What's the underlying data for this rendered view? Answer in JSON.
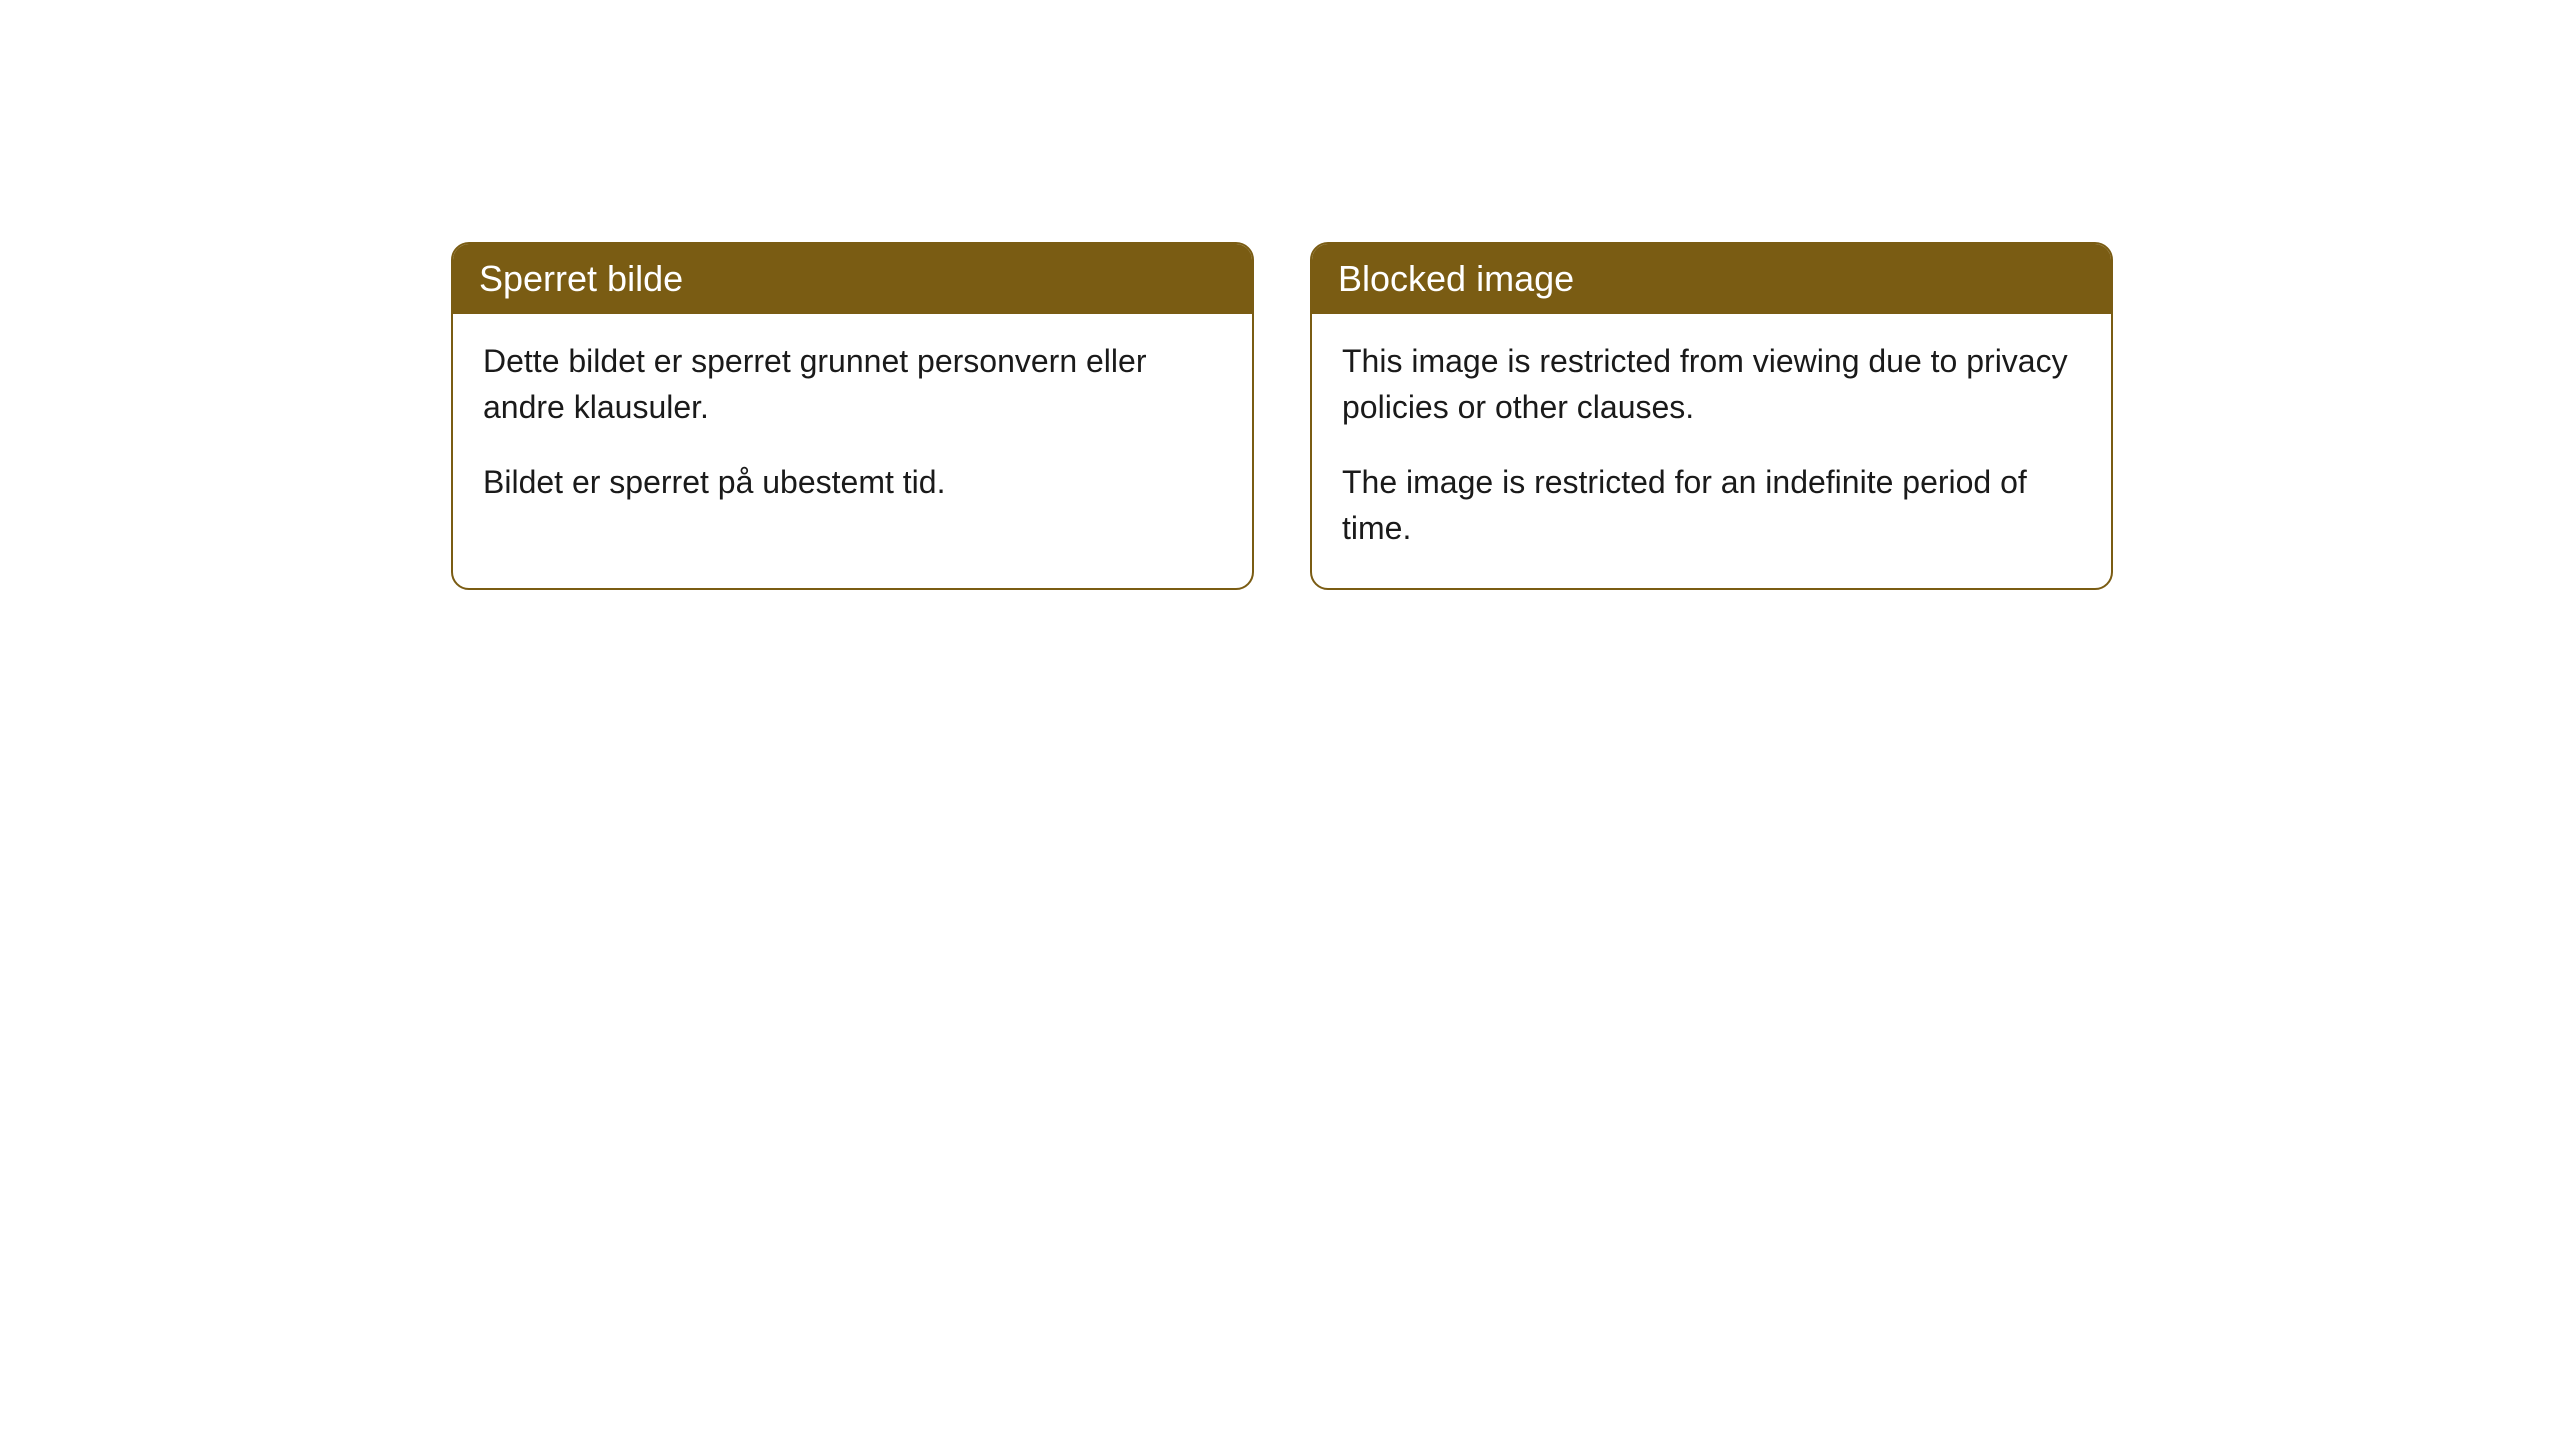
{
  "cards": [
    {
      "title": "Sperret bilde",
      "paragraph1": "Dette bildet er sperret grunnet personvern eller andre klausuler.",
      "paragraph2": "Bildet er sperret på ubestemt tid."
    },
    {
      "title": "Blocked image",
      "paragraph1": "This image is restricted from viewing due to privacy policies or other clauses.",
      "paragraph2": "The image is restricted for an indefinite period of time."
    }
  ],
  "styling": {
    "header_background": "#7a5c13",
    "header_text_color": "#ffffff",
    "card_border_color": "#7a5c13",
    "card_background": "#ffffff",
    "body_text_color": "#1a1a1a",
    "border_radius": 18,
    "title_fontsize": 36,
    "body_fontsize": 32
  }
}
